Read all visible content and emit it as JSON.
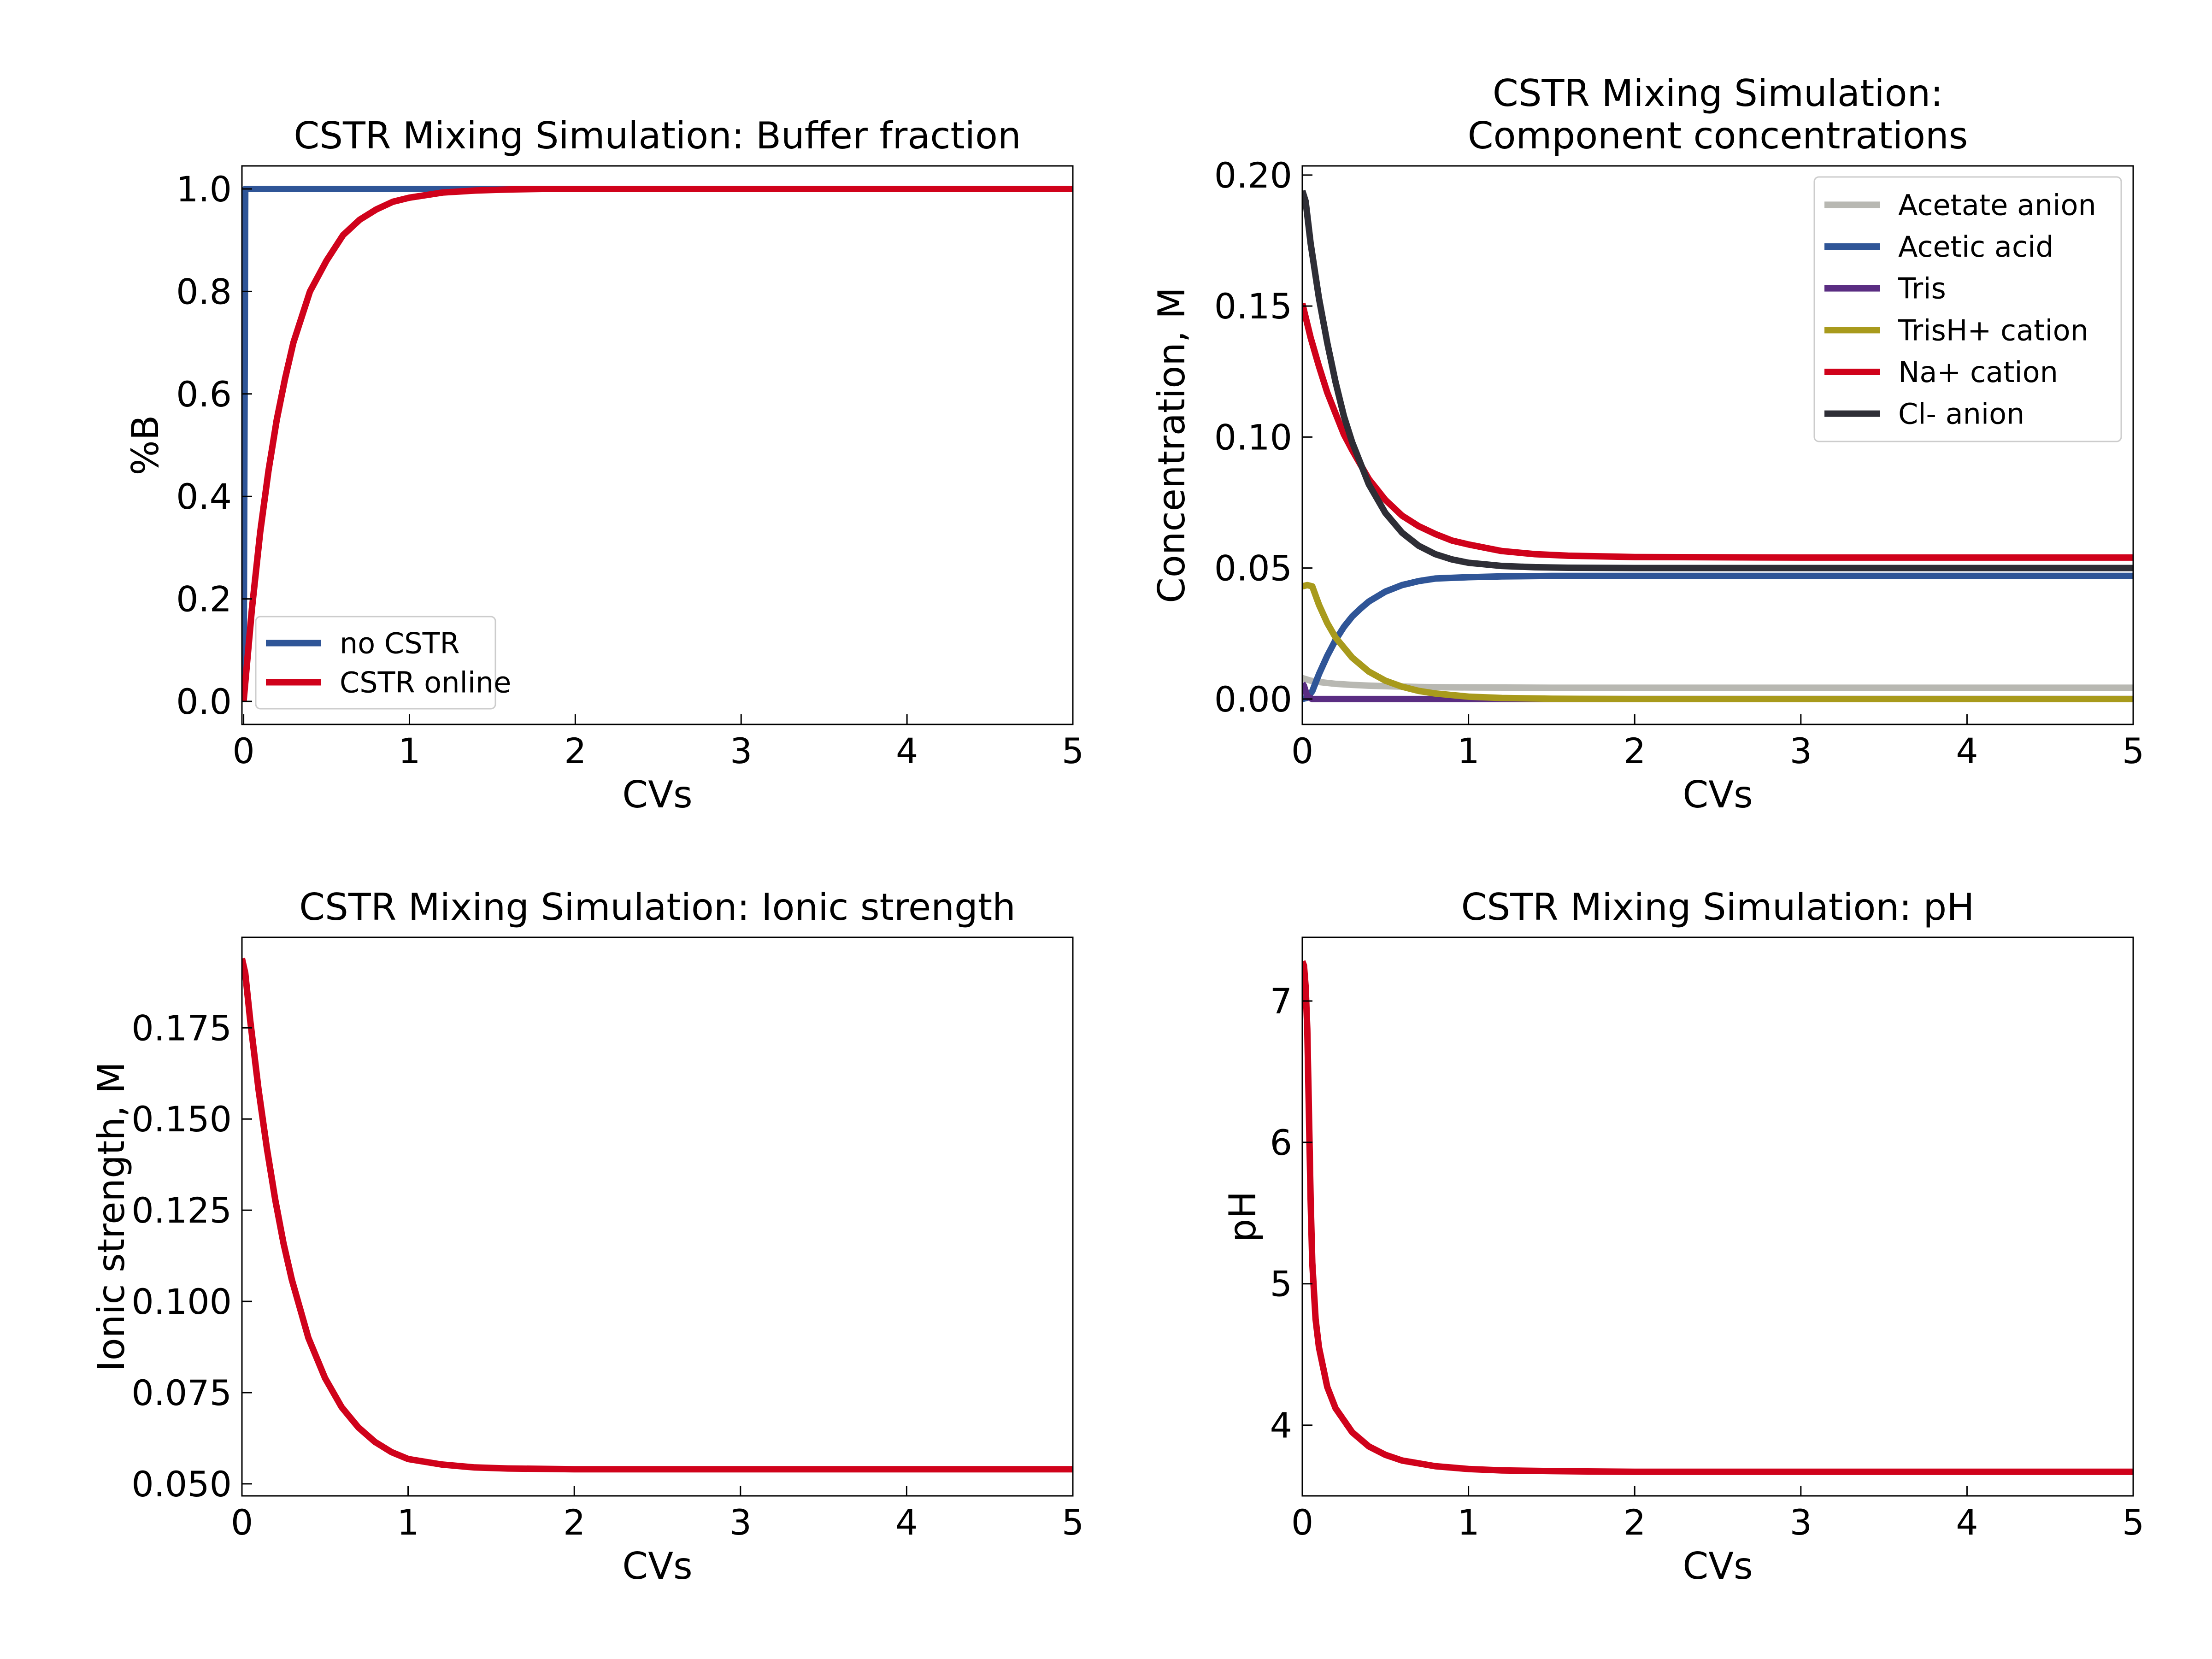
{
  "colors": {
    "blue": "#2f5597",
    "red": "#d0021b",
    "gray": "#b8b8b2",
    "purple": "#5a2d82",
    "olive": "#a89a1c",
    "dark": "#2e2e36"
  },
  "chart_data": [
    {
      "type": "line",
      "title": "CSTR Mixing Simulation: Buffer fraction",
      "xlabel": "CVs",
      "ylabel": "%B",
      "xlim": [
        -0.01,
        5
      ],
      "ylim": [
        -0.045,
        1.045
      ],
      "xticks": [
        0,
        1,
        2,
        3,
        4,
        5
      ],
      "xtick_labels": [
        "0",
        "1",
        "2",
        "3",
        "4",
        "5"
      ],
      "yticks": [
        0.0,
        0.2,
        0.4,
        0.6,
        0.8,
        1.0
      ],
      "ytick_labels": [
        "0.0",
        "0.2",
        "0.4",
        "0.6",
        "0.8",
        "1.0"
      ],
      "grid": false,
      "legend_position": "lower-left",
      "series": [
        {
          "name": "no CSTR",
          "color": "#2f5597",
          "x": [
            0,
            0.005,
            0.01,
            0.02,
            5.0
          ],
          "y": [
            0.0,
            0.5,
            1.0,
            1.0,
            1.0
          ]
        },
        {
          "name": "CSTR online",
          "color": "#d0021b",
          "x": [
            0,
            0.05,
            0.1,
            0.15,
            0.2,
            0.25,
            0.3,
            0.35,
            0.4,
            0.5,
            0.6,
            0.7,
            0.8,
            0.9,
            1.0,
            1.2,
            1.4,
            1.6,
            1.8,
            2.0,
            2.5,
            3.0,
            3.5,
            4.0,
            4.5,
            5.0
          ],
          "y": [
            0.0,
            0.18,
            0.33,
            0.45,
            0.55,
            0.63,
            0.7,
            0.75,
            0.8,
            0.86,
            0.91,
            0.94,
            0.96,
            0.975,
            0.983,
            0.993,
            0.997,
            0.999,
            1.0,
            1.0,
            1.0,
            1.0,
            1.0,
            1.0,
            1.0,
            1.0
          ]
        }
      ]
    },
    {
      "type": "line",
      "title": "CSTR Mixing Simulation:",
      "subtitle": "Component concentrations",
      "xlabel": "CVs",
      "ylabel": "Concentration, M",
      "xlim": [
        0,
        5
      ],
      "ylim": [
        -0.0097,
        0.2035
      ],
      "xticks": [
        0,
        1,
        2,
        3,
        4,
        5
      ],
      "xtick_labels": [
        "0",
        "1",
        "2",
        "3",
        "4",
        "5"
      ],
      "yticks": [
        0.0,
        0.05,
        0.1,
        0.15,
        0.2
      ],
      "ytick_labels": [
        "0.00",
        "0.05",
        "0.10",
        "0.15",
        "0.20"
      ],
      "grid": false,
      "legend_position": "top-right",
      "series": [
        {
          "name": "Acetate anion",
          "color": "#b8b8b2",
          "x": [
            0,
            0.05,
            0.1,
            0.2,
            0.3,
            0.4,
            0.5,
            0.7,
            1.0,
            1.5,
            2.0,
            3.0,
            4.0,
            5.0
          ],
          "y": [
            0.008,
            0.007,
            0.0065,
            0.0058,
            0.0054,
            0.0051,
            0.0049,
            0.0046,
            0.0044,
            0.0043,
            0.0043,
            0.0043,
            0.0043,
            0.0043
          ]
        },
        {
          "name": "Acetic acid",
          "color": "#2f5597",
          "x": [
            0,
            0.03,
            0.06,
            0.1,
            0.15,
            0.2,
            0.25,
            0.3,
            0.35,
            0.4,
            0.5,
            0.6,
            0.7,
            0.8,
            1.0,
            1.2,
            1.5,
            2.0,
            3.0,
            4.0,
            5.0
          ],
          "y": [
            0.0,
            0.0005,
            0.003,
            0.0095,
            0.0165,
            0.0225,
            0.0275,
            0.0315,
            0.0345,
            0.0372,
            0.041,
            0.0435,
            0.045,
            0.046,
            0.0465,
            0.0468,
            0.047,
            0.047,
            0.047,
            0.047,
            0.047
          ]
        },
        {
          "name": "Tris",
          "color": "#5a2d82",
          "x": [
            0,
            0.01,
            0.03,
            0.06,
            0.1,
            5.0
          ],
          "y": [
            0.006,
            0.005,
            0.001,
            0.0,
            0.0,
            0.0
          ]
        },
        {
          "name": "TrisH+ cation",
          "color": "#a89a1c",
          "x": [
            0,
            0.03,
            0.06,
            0.1,
            0.15,
            0.2,
            0.3,
            0.4,
            0.5,
            0.6,
            0.7,
            0.8,
            1.0,
            1.2,
            1.5,
            2.0,
            3.0,
            4.0,
            5.0
          ],
          "y": [
            0.043,
            0.0435,
            0.043,
            0.036,
            0.029,
            0.0235,
            0.0158,
            0.0105,
            0.007,
            0.0047,
            0.0031,
            0.0021,
            0.0009,
            0.0004,
            0.0001,
            0.0,
            0.0,
            0.0,
            0.0
          ]
        },
        {
          "name": "Na+ cation",
          "color": "#d0021b",
          "x": [
            0,
            0.05,
            0.1,
            0.15,
            0.2,
            0.25,
            0.3,
            0.4,
            0.5,
            0.6,
            0.7,
            0.8,
            0.9,
            1.0,
            1.2,
            1.4,
            1.6,
            2.0,
            3.0,
            4.0,
            5.0
          ],
          "y": [
            0.151,
            0.138,
            0.127,
            0.117,
            0.109,
            0.101,
            0.095,
            0.084,
            0.076,
            0.07,
            0.066,
            0.063,
            0.0605,
            0.059,
            0.0565,
            0.0553,
            0.0547,
            0.0542,
            0.054,
            0.054,
            0.054
          ]
        },
        {
          "name": "Cl- anion",
          "color": "#2e2e36",
          "x": [
            0,
            0.02,
            0.05,
            0.1,
            0.15,
            0.2,
            0.25,
            0.3,
            0.4,
            0.5,
            0.6,
            0.7,
            0.8,
            0.9,
            1.0,
            1.2,
            1.4,
            1.6,
            2.0,
            3.0,
            4.0,
            5.0
          ],
          "y": [
            0.194,
            0.19,
            0.174,
            0.153,
            0.136,
            0.121,
            0.108,
            0.098,
            0.082,
            0.071,
            0.0635,
            0.0585,
            0.0553,
            0.0533,
            0.052,
            0.0508,
            0.0503,
            0.0501,
            0.05,
            0.05,
            0.05,
            0.05
          ]
        }
      ]
    },
    {
      "type": "line",
      "title": "CSTR Mixing Simulation: Ionic strength",
      "xlabel": "CVs",
      "ylabel": "Ionic strength, M",
      "xlim": [
        0,
        5
      ],
      "ylim": [
        0.0467,
        0.1998
      ],
      "xticks": [
        0,
        1,
        2,
        3,
        4,
        5
      ],
      "xtick_labels": [
        "0",
        "1",
        "2",
        "3",
        "4",
        "5"
      ],
      "yticks": [
        0.05,
        0.075,
        0.1,
        0.125,
        0.15,
        0.175
      ],
      "ytick_labels": [
        "0.050",
        "0.075",
        "0.100",
        "0.125",
        "0.150",
        "0.175"
      ],
      "grid": false,
      "series": [
        {
          "name": "",
          "color": "#d0021b",
          "x": [
            0,
            0.02,
            0.05,
            0.1,
            0.15,
            0.2,
            0.25,
            0.3,
            0.4,
            0.5,
            0.6,
            0.7,
            0.8,
            0.9,
            1.0,
            1.2,
            1.4,
            1.6,
            2.0,
            3.0,
            4.0,
            5.0
          ],
          "y": [
            0.194,
            0.19,
            0.177,
            0.158,
            0.142,
            0.128,
            0.116,
            0.106,
            0.09,
            0.079,
            0.071,
            0.0655,
            0.0615,
            0.0587,
            0.0568,
            0.0553,
            0.0545,
            0.0542,
            0.054,
            0.054,
            0.054,
            0.054
          ]
        }
      ]
    },
    {
      "type": "line",
      "title": "CSTR Mixing Simulation: pH",
      "xlabel": "CVs",
      "ylabel": "pH",
      "xlim": [
        0,
        5
      ],
      "ylim": [
        3.5,
        7.45
      ],
      "xticks": [
        0,
        1,
        2,
        3,
        4,
        5
      ],
      "xtick_labels": [
        "0",
        "1",
        "2",
        "3",
        "4",
        "5"
      ],
      "yticks": [
        4,
        5,
        6,
        7
      ],
      "ytick_labels": [
        "4",
        "5",
        "6",
        "7"
      ],
      "grid": false,
      "series": [
        {
          "name": "",
          "color": "#d0021b",
          "x": [
            0,
            0.01,
            0.02,
            0.03,
            0.04,
            0.05,
            0.06,
            0.08,
            0.1,
            0.15,
            0.2,
            0.3,
            0.4,
            0.5,
            0.6,
            0.8,
            1.0,
            1.2,
            1.5,
            2.0,
            3.0,
            4.0,
            5.0
          ],
          "y": [
            7.28,
            7.25,
            7.1,
            6.8,
            6.2,
            5.6,
            5.15,
            4.75,
            4.55,
            4.27,
            4.12,
            3.95,
            3.85,
            3.79,
            3.75,
            3.71,
            3.69,
            3.68,
            3.675,
            3.67,
            3.67,
            3.67,
            3.67
          ]
        }
      ]
    }
  ]
}
